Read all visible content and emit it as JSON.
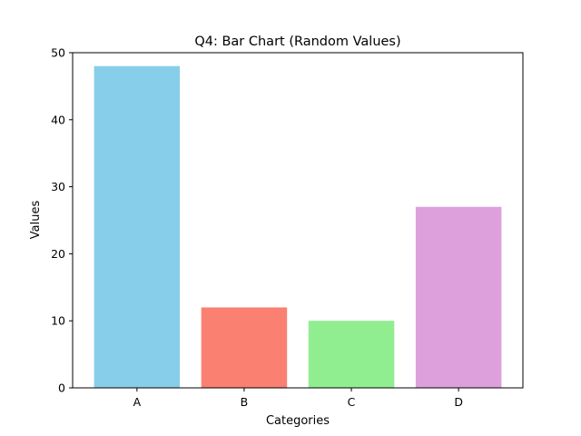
{
  "chart_data": {
    "type": "bar",
    "title": "Q4: Bar Chart (Random Values)",
    "xlabel": "Categories",
    "ylabel": "Values",
    "categories": [
      "A",
      "B",
      "C",
      "D"
    ],
    "values": [
      48,
      12,
      10,
      27
    ],
    "colors": [
      "#87ceeb",
      "#fa8072",
      "#90ee90",
      "#dda0dd"
    ],
    "ylim": [
      0,
      50
    ],
    "yticks": [
      0,
      10,
      20,
      30,
      40,
      50
    ],
    "grid": false,
    "legend": "none"
  }
}
